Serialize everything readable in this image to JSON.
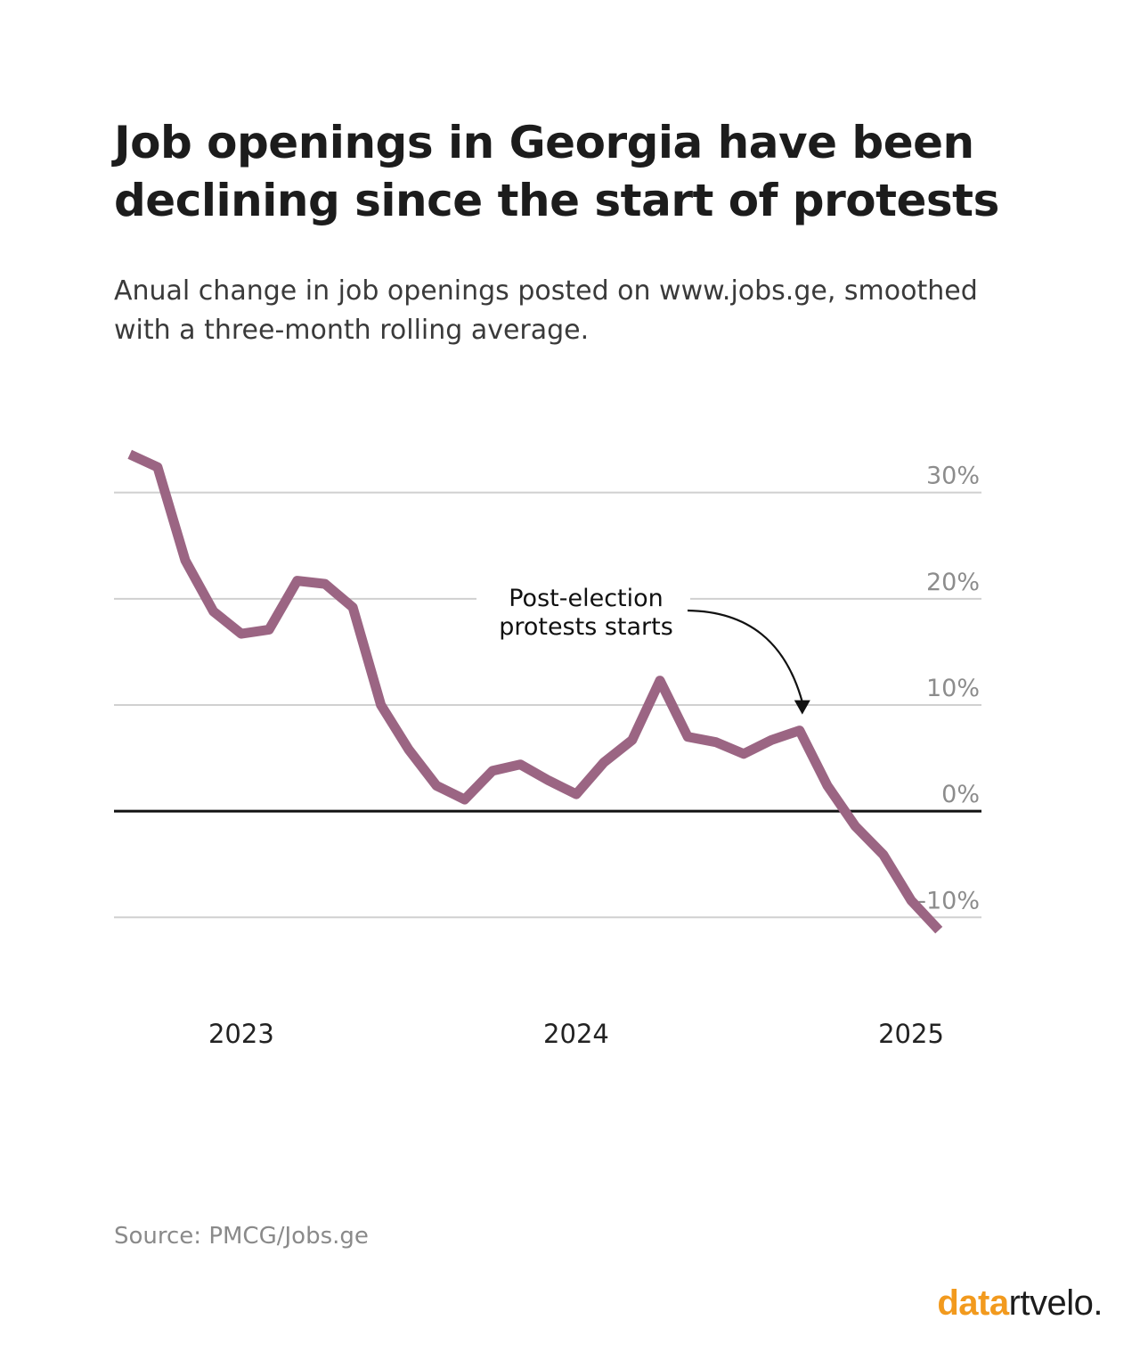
{
  "header": {
    "title": "Job openings in Georgia have been declining since the start of protests",
    "subtitle": "Anual change in job openings posted on www.jobs.ge, smoothed with a three-month rolling average."
  },
  "footer": {
    "source": "Source: PMCG/Jobs.ge",
    "logo_part1": "data",
    "logo_part2": "rtvelo."
  },
  "colors": {
    "line": "#9b6583",
    "grid": "#d0d0d0",
    "zero": "#111111",
    "tick": "#8c8c8c",
    "xtick": "#222222",
    "annotation": "#111111"
  },
  "chart_data": {
    "type": "line",
    "x_axis": "time",
    "xlim": [
      2022.62,
      2025.21
    ],
    "ylim": [
      -13.5,
      34
    ],
    "yticks": [
      {
        "value": 30,
        "label": "30%"
      },
      {
        "value": 20,
        "label": "20%"
      },
      {
        "value": 10,
        "label": "10%"
      },
      {
        "value": 0,
        "label": "0%"
      },
      {
        "value": -10,
        "label": "-10%"
      }
    ],
    "xticks": [
      {
        "value": 2023.0,
        "label": "2023"
      },
      {
        "value": 2024.0,
        "label": "2024"
      },
      {
        "value": 2025.0,
        "label": "2025"
      }
    ],
    "grid": true,
    "series": [
      {
        "x": [
          2022.667,
          2022.75,
          2022.833,
          2022.917,
          2023.0,
          2023.083,
          2023.167,
          2023.25,
          2023.333,
          2023.417,
          2023.5,
          2023.583,
          2023.667,
          2023.75,
          2023.833,
          2023.917,
          2024.0,
          2024.083,
          2024.167,
          2024.25,
          2024.333,
          2024.417,
          2024.5,
          2024.583,
          2024.667,
          2024.75,
          2024.833,
          2024.917,
          2025.0,
          2025.083
        ],
        "values": [
          33.6,
          32.4,
          23.6,
          18.8,
          16.7,
          17.1,
          21.7,
          21.4,
          19.2,
          10.0,
          5.8,
          2.4,
          1.1,
          3.8,
          4.4,
          2.9,
          1.6,
          4.6,
          6.7,
          12.3,
          7.0,
          6.5,
          5.4,
          6.7,
          7.6,
          2.4,
          -1.4,
          -4.1,
          -8.4,
          -11.2
        ]
      }
    ],
    "annotations": [
      {
        "text_lines": [
          "Post-election",
          "protests starts"
        ],
        "x": 2024.667,
        "y": 7.6
      }
    ]
  }
}
